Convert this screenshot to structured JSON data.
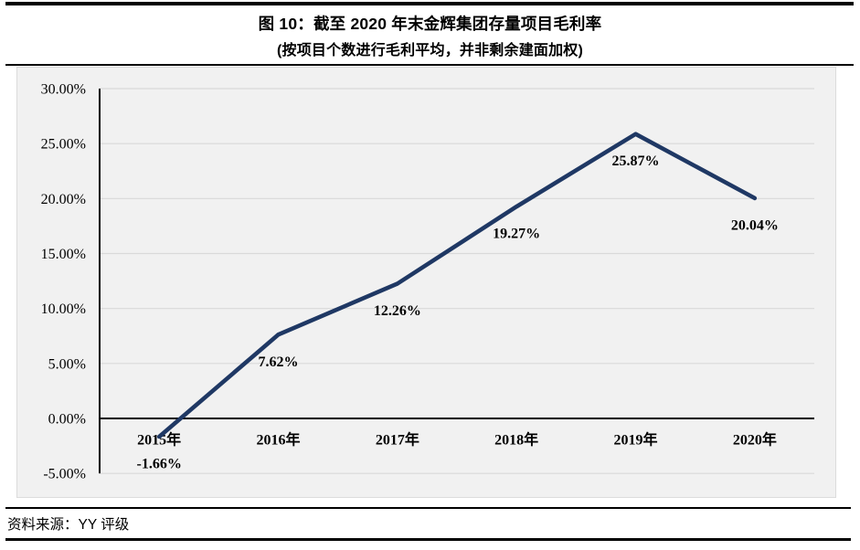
{
  "header": {
    "title": "图 10：截至 2020 年末金辉集团存量项目毛利率",
    "subtitle": "(按项目个数进行毛利平均，并非剩余建面加权)"
  },
  "footer": {
    "source": "资料来源：YY 评级"
  },
  "chart_data": {
    "type": "line",
    "title": "截至 2020 年末金辉集团存量项目毛利率",
    "subtitle": "按项目个数进行毛利平均，并非剩余建面加权",
    "categories": [
      "2015年",
      "2016年",
      "2017年",
      "2018年",
      "2019年",
      "2020年"
    ],
    "values": [
      -1.66,
      7.62,
      12.26,
      19.27,
      25.87,
      20.04
    ],
    "data_labels": [
      "-1.66%",
      "7.62%",
      "12.26%",
      "19.27%",
      "25.87%",
      "20.04%"
    ],
    "y_axis": {
      "tick_values": [
        30,
        25,
        20,
        15,
        10,
        5,
        0,
        -5
      ],
      "tick_labels": [
        "30.00%",
        "25.00%",
        "20.00%",
        "15.00%",
        "10.00%",
        "5.00%",
        "0.00%",
        "-5.00%"
      ],
      "ylim": [
        -5,
        30
      ]
    },
    "grid": true,
    "legend": "none",
    "colors": {
      "line": "#1f3864",
      "grid": "#d9d9d9",
      "axis": "#000000",
      "plot_bg": "#f1f1f1",
      "text": "#000000"
    }
  }
}
